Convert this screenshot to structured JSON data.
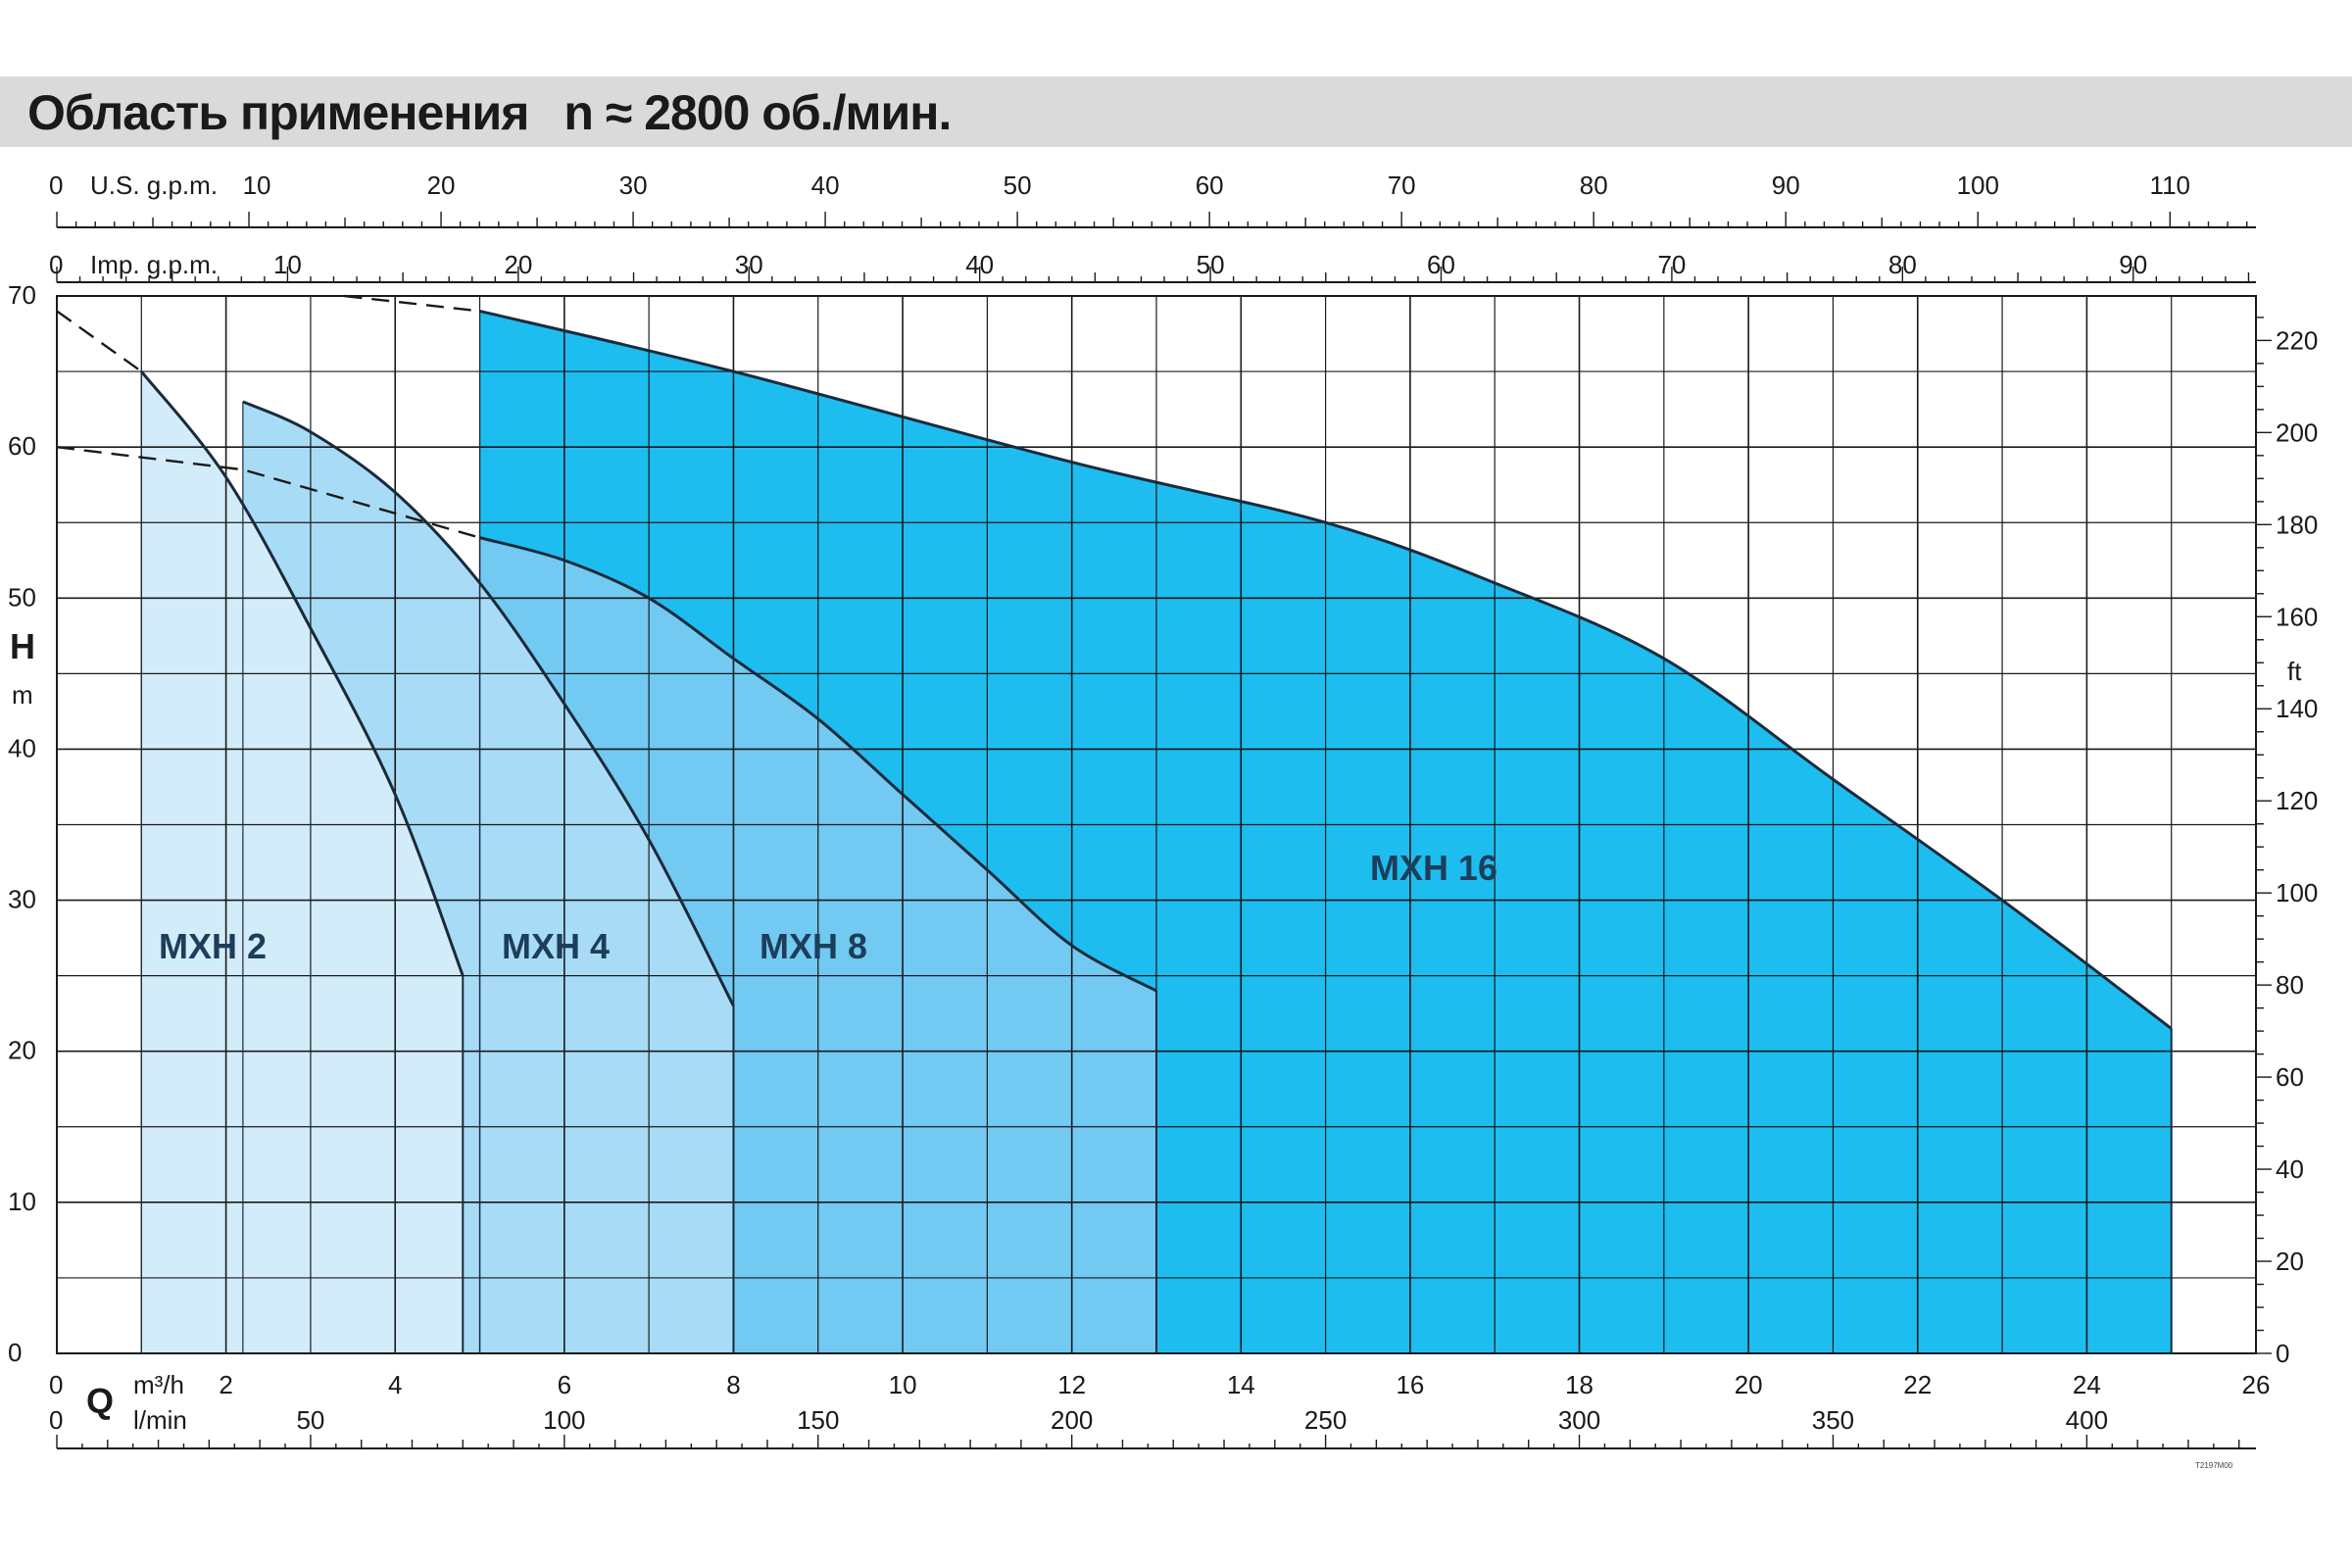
{
  "header": {
    "title": "Область применения",
    "subtitle": "n ≈ 2800 об./мин."
  },
  "colors": {
    "mxh2": "#d3ecf9",
    "mxh4": "#a8dcf6",
    "mxh8": "#72c9f2",
    "mxh16": "#1ebdf0",
    "grid": "#1a1a1a",
    "title_bar": "#dadada"
  },
  "chart_data": {
    "type": "area",
    "xlabel": "Q",
    "ylabel": "H",
    "xlim": [
      0,
      26
    ],
    "ylim": [
      0,
      70
    ],
    "grid": true,
    "axes": {
      "primary_x": {
        "unit": "m³/h",
        "ticks": [
          0,
          2,
          4,
          6,
          8,
          10,
          12,
          14,
          16,
          18,
          20,
          22,
          24,
          26
        ]
      },
      "bottom_secondary": {
        "unit": "l/min",
        "ticks": [
          0,
          50,
          100,
          150,
          200,
          250,
          300,
          350,
          400
        ]
      },
      "top_us": {
        "unit": "U.S. g.p.m.",
        "ticks": [
          0,
          10,
          20,
          30,
          40,
          50,
          60,
          70,
          80,
          90,
          100,
          110
        ]
      },
      "top_imp": {
        "unit": "Imp. g.p.m.",
        "ticks": [
          0,
          10,
          20,
          30,
          40,
          50,
          60,
          70,
          80,
          90
        ]
      },
      "left": {
        "name": "H",
        "unit": "m",
        "ticks": [
          0,
          10,
          20,
          30,
          40,
          50,
          60,
          70
        ]
      },
      "right": {
        "unit": "ft",
        "ticks": [
          0,
          20,
          40,
          60,
          80,
          100,
          120,
          140,
          160,
          180,
          200,
          220
        ]
      }
    },
    "series": [
      {
        "name": "MXH 2",
        "x": [
          1.0,
          2.0,
          3.0,
          4.0,
          4.8
        ],
        "y": [
          65.0,
          58.0,
          48.0,
          37.0,
          25.0
        ]
      },
      {
        "name": "MXH 4",
        "x": [
          2.2,
          3.0,
          4.0,
          5.0,
          6.0,
          7.0,
          8.0
        ],
        "y": [
          63.0,
          61.0,
          57.0,
          51.0,
          43.0,
          34.0,
          23.0
        ]
      },
      {
        "name": "MXH 8",
        "x": [
          5.0,
          6.0,
          7.0,
          8.0,
          9.0,
          10.0,
          11.0,
          12.0,
          13.0
        ],
        "y": [
          54.0,
          52.5,
          50.0,
          46.0,
          42.0,
          37.0,
          32.0,
          27.0,
          24.0
        ]
      },
      {
        "name": "MXH 16",
        "x": [
          5.0,
          8.0,
          12.0,
          15.0,
          17.0,
          19.0,
          21.0,
          23.0,
          25.0
        ],
        "y": [
          69.0,
          65.0,
          59.0,
          55.0,
          51.0,
          46.0,
          38.0,
          30.0,
          21.5
        ]
      }
    ],
    "series_x_start": [
      1.0,
      2.2,
      5.0,
      5.0
    ],
    "boundaries": [
      {
        "x": [
          0,
          1.0
        ],
        "y": [
          69.0,
          65.0
        ]
      },
      {
        "x": [
          0,
          2.2,
          5.0
        ],
        "y": [
          60.0,
          58.5,
          54.0
        ]
      },
      {
        "x": [
          3.4,
          5.0
        ],
        "y": [
          70.0,
          69.0
        ]
      }
    ],
    "annotations": [
      "MXH 2",
      "MXH 4",
      "MXH 8",
      "MXH 16"
    ],
    "ref_code": "T2197M00"
  }
}
